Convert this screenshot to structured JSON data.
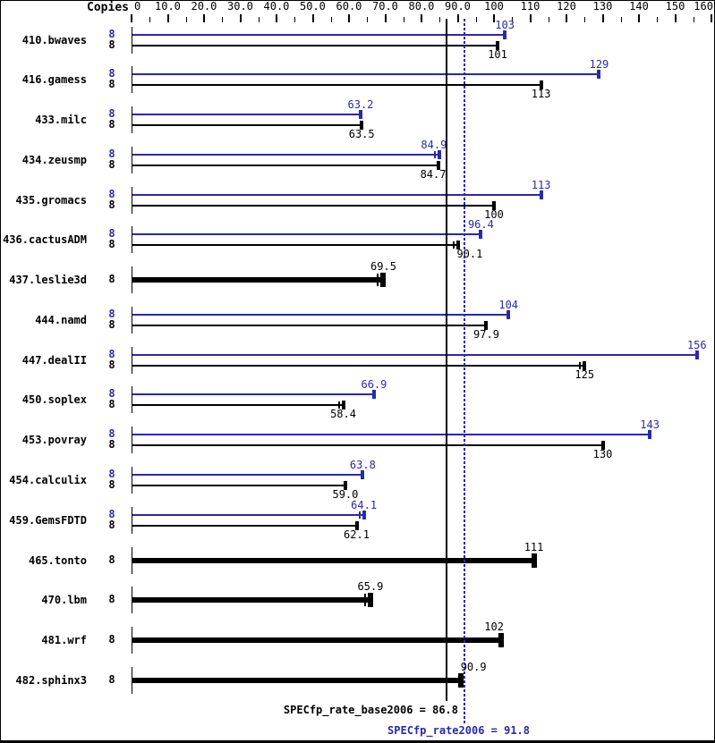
{
  "header": {
    "copies": "Copies"
  },
  "colors": {
    "peak": "#2a2aa5",
    "base": "#000000",
    "background": "#ffffff"
  },
  "footer": {
    "base_label": "SPECfp_rate_base2006 = 86.8",
    "peak_label": "SPECfp_rate2006 = 91.8"
  },
  "axis": {
    "major_ticks": [
      {
        "v": 0,
        "t": "0"
      },
      {
        "v": 10,
        "t": "10.0"
      },
      {
        "v": 20,
        "t": "20.0"
      },
      {
        "v": 30,
        "t": "30.0"
      },
      {
        "v": 40,
        "t": "40.0"
      },
      {
        "v": 50,
        "t": "50.0"
      },
      {
        "v": 60,
        "t": "60.0"
      },
      {
        "v": 70,
        "t": "70.0"
      },
      {
        "v": 80,
        "t": "80.0"
      },
      {
        "v": 90,
        "t": "90.0"
      },
      {
        "v": 100,
        "t": "100"
      },
      {
        "v": 110,
        "t": "110"
      },
      {
        "v": 120,
        "t": "120"
      },
      {
        "v": 130,
        "t": "130"
      },
      {
        "v": 140,
        "t": "140"
      },
      {
        "v": 150,
        "t": "150"
      },
      {
        "v": 160,
        "t": "160"
      }
    ],
    "minor_tick_values": [
      5,
      15,
      25,
      35,
      45,
      55,
      65,
      75,
      85,
      95,
      105,
      115,
      125,
      135,
      145,
      155
    ]
  },
  "chart_data": {
    "type": "bar",
    "orientation": "horizontal",
    "title": "",
    "xlabel": "",
    "ylabel": "Copies",
    "xlim": [
      0,
      160
    ],
    "categories": [
      "410.bwaves",
      "416.gamess",
      "433.milc",
      "434.zeusmp",
      "435.gromacs",
      "436.cactusADM",
      "437.leslie3d",
      "444.namd",
      "447.dealII",
      "450.soplex",
      "453.povray",
      "454.calculix",
      "459.GemsFDTD",
      "465.tonto",
      "470.lbm",
      "481.wrf",
      "482.sphinx3"
    ],
    "copies": [
      8,
      8,
      8,
      8,
      8,
      8,
      8,
      8,
      8,
      8,
      8,
      8,
      8,
      8,
      8,
      8,
      8
    ],
    "series": [
      {
        "name": "peak",
        "color": "#2a2aa5",
        "values": [
          103,
          129,
          63.2,
          84.9,
          113,
          96.4,
          null,
          104,
          156,
          66.9,
          143,
          63.8,
          64.1,
          null,
          null,
          null,
          null
        ]
      },
      {
        "name": "base",
        "color": "#000000",
        "values": [
          101,
          113,
          63.5,
          84.7,
          100,
          90.1,
          69.5,
          97.9,
          125,
          58.4,
          130,
          59.0,
          62.1,
          111,
          65.9,
          102,
          90.9
        ]
      }
    ],
    "reference_lines": [
      {
        "name": "SPECfp_rate_base2006",
        "value": 86.8,
        "style": "solid",
        "color": "#000000"
      },
      {
        "name": "SPECfp_rate2006",
        "value": 91.8,
        "style": "dotted",
        "color": "#2a2aa5"
      }
    ],
    "legend_position": "none",
    "grid": false
  },
  "rows": [
    {
      "name": "410.bwaves",
      "bars": [
        {
          "series": "peak",
          "copies": "8",
          "value": 103,
          "label": "103"
        },
        {
          "series": "base",
          "copies": "8",
          "value": 101,
          "label": "101"
        }
      ]
    },
    {
      "name": "416.gamess",
      "bars": [
        {
          "series": "peak",
          "copies": "8",
          "value": 129,
          "label": "129"
        },
        {
          "series": "base",
          "copies": "8",
          "value": 113,
          "label": "113"
        }
      ]
    },
    {
      "name": "433.milc",
      "bars": [
        {
          "series": "peak",
          "copies": "8",
          "value": 63.2,
          "label": "63.2"
        },
        {
          "series": "base",
          "copies": "8",
          "value": 63.5,
          "label": "63.5"
        }
      ]
    },
    {
      "name": "434.zeusmp",
      "bars": [
        {
          "series": "peak",
          "copies": "8",
          "value": 84.9,
          "label": "84.9",
          "dx": -6,
          "cap2": true
        },
        {
          "series": "base",
          "copies": "8",
          "value": 84.7,
          "label": "84.7",
          "dx": -6
        }
      ]
    },
    {
      "name": "435.gromacs",
      "bars": [
        {
          "series": "peak",
          "copies": "8",
          "value": 113,
          "label": "113"
        },
        {
          "series": "base",
          "copies": "8",
          "value": 100,
          "label": "100"
        }
      ]
    },
    {
      "name": "436.cactusADM",
      "bars": [
        {
          "series": "peak",
          "copies": "8",
          "value": 96.4,
          "label": "96.4"
        },
        {
          "series": "base",
          "copies": "8",
          "value": 90.1,
          "label": "90.1",
          "dx": 13,
          "cap2": true
        }
      ]
    },
    {
      "name": "437.leslie3d",
      "bars": [
        {
          "series": "base",
          "single": true,
          "copies": "8",
          "value": 69.5,
          "label": "69.5",
          "cap2": true
        }
      ]
    },
    {
      "name": "444.namd",
      "bars": [
        {
          "series": "peak",
          "copies": "8",
          "value": 104,
          "label": "104"
        },
        {
          "series": "base",
          "copies": "8",
          "value": 97.9,
          "label": "97.9"
        }
      ]
    },
    {
      "name": "447.dealII",
      "bars": [
        {
          "series": "peak",
          "copies": "8",
          "value": 156,
          "label": "156"
        },
        {
          "series": "base",
          "copies": "8",
          "value": 125,
          "label": "125",
          "cap2": true
        }
      ]
    },
    {
      "name": "450.soplex",
      "bars": [
        {
          "series": "peak",
          "copies": "8",
          "value": 66.9,
          "label": "66.9"
        },
        {
          "series": "base",
          "copies": "8",
          "value": 58.4,
          "label": "58.4",
          "cap2": true
        }
      ]
    },
    {
      "name": "453.povray",
      "bars": [
        {
          "series": "peak",
          "copies": "8",
          "value": 143,
          "label": "143"
        },
        {
          "series": "base",
          "copies": "8",
          "value": 130,
          "label": "130"
        }
      ]
    },
    {
      "name": "454.calculix",
      "bars": [
        {
          "series": "peak",
          "copies": "8",
          "value": 63.8,
          "label": "63.8"
        },
        {
          "series": "base",
          "copies": "8",
          "value": 59.0,
          "label": "59.0"
        }
      ]
    },
    {
      "name": "459.GemsFDTD",
      "bars": [
        {
          "series": "peak",
          "copies": "8",
          "value": 64.1,
          "label": "64.1",
          "cap2": true
        },
        {
          "series": "base",
          "copies": "8",
          "value": 62.1,
          "label": "62.1"
        }
      ]
    },
    {
      "name": "465.tonto",
      "bars": [
        {
          "series": "base",
          "single": true,
          "copies": "8",
          "value": 111,
          "label": "111"
        }
      ]
    },
    {
      "name": "470.lbm",
      "bars": [
        {
          "series": "base",
          "single": true,
          "copies": "8",
          "value": 65.9,
          "label": "65.9",
          "cap2": true
        }
      ]
    },
    {
      "name": "481.wrf",
      "bars": [
        {
          "series": "base",
          "single": true,
          "copies": "8",
          "value": 102,
          "label": "102",
          "dx": -8
        }
      ]
    },
    {
      "name": "482.sphinx3",
      "bars": [
        {
          "series": "base",
          "single": true,
          "copies": "8",
          "value": 90.9,
          "label": "90.9",
          "dx": 14
        }
      ]
    }
  ]
}
